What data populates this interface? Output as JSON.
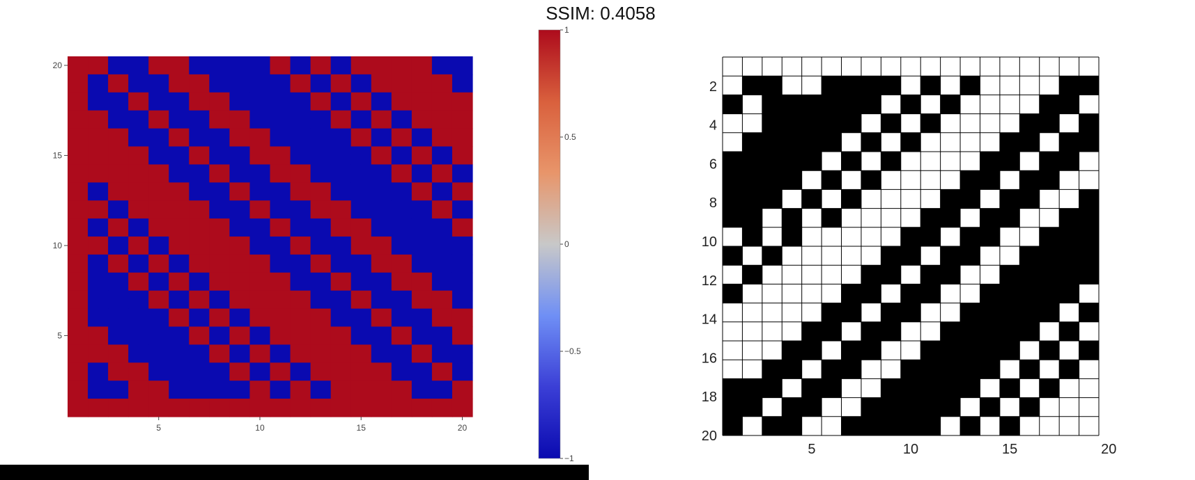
{
  "title": "SSIM: 0.4058",
  "colors": {
    "red": "#ad0b1c",
    "blue": "#0a0ab0",
    "black": "#000000",
    "white": "#ffffff",
    "colorscale": [
      "#0a0ab0",
      "#3b3fd6",
      "#6f8ff5",
      "#c8c8c8",
      "#e8956a",
      "#d9603d",
      "#ad0b1c"
    ],
    "bottom_bar": "#000000"
  },
  "chart_data": [
    {
      "type": "heatmap",
      "colorscale": "coolwarm",
      "xlim": [
        0.5,
        20.5
      ],
      "ylim": [
        0.5,
        20.5
      ],
      "x_ticks": [
        5,
        10,
        15,
        20
      ],
      "y_ticks": [
        5,
        10,
        15,
        20
      ],
      "zmin": -1,
      "zmax": 1,
      "colorbar": {
        "ticks": [
          1,
          0.5,
          0,
          -0.5,
          -1
        ],
        "tick_labels": [
          "1",
          "0.5",
          "0",
          "−0.5",
          "−1"
        ]
      },
      "y_direction": "up",
      "rows_top_to_bottom": [
        "11-----+++----+-+-+++++++--",
        "1-+--++---+-+-+-+++++--",
        "1--+--++---+-+-+-+++++",
        "11--+--++---+-+-+-++++",
        "111--+--++---+-+-+-+++",
        "1111--+--++---+-+-+-++",
        "11111--+--++---+-+-+-+",
        "1-11111--+--++---+-+-+-",
        "1+-11111--+--++---+-+-+",
        "1-+-11111--+--++---+-+-",
        "1+-+-11111--+--++---+-+",
        "1-+-+-11111--+--++---+-",
        "1--+-+-11111--+--++---+",
        "1---+-+-11111--+--++---",
        "1----+-+-11111--+--++--",
        "11----+-+-11111--+--++-",
        "111----+-+-11111--+--++",
        "1-11----+-+-11111--+--+",
        "1--1111-----+-+-11111--",
        "11111111111111111111"
      ],
      "matrix_top_to_bottom": [
        [
          1,
          1,
          -1,
          -1,
          1,
          1,
          -1,
          -1,
          -1,
          -1,
          1,
          -1,
          1,
          -1,
          1,
          1,
          1,
          1,
          -1,
          -1
        ],
        [
          1,
          -1,
          1,
          -1,
          -1,
          1,
          1,
          -1,
          -1,
          -1,
          -1,
          1,
          -1,
          1,
          -1,
          1,
          1,
          1,
          1,
          -1
        ],
        [
          1,
          -1,
          -1,
          1,
          -1,
          -1,
          1,
          1,
          -1,
          -1,
          -1,
          -1,
          1,
          -1,
          1,
          -1,
          1,
          1,
          1,
          1
        ],
        [
          1,
          1,
          -1,
          -1,
          1,
          -1,
          -1,
          1,
          1,
          -1,
          -1,
          -1,
          -1,
          1,
          -1,
          1,
          -1,
          1,
          1,
          1
        ],
        [
          1,
          1,
          1,
          -1,
          -1,
          1,
          -1,
          -1,
          1,
          1,
          -1,
          -1,
          -1,
          -1,
          1,
          -1,
          1,
          -1,
          1,
          1
        ],
        [
          1,
          1,
          1,
          1,
          -1,
          -1,
          1,
          -1,
          -1,
          1,
          1,
          -1,
          -1,
          -1,
          -1,
          1,
          -1,
          1,
          -1,
          1
        ],
        [
          1,
          1,
          1,
          1,
          1,
          -1,
          -1,
          1,
          -1,
          -1,
          1,
          1,
          -1,
          -1,
          -1,
          -1,
          1,
          -1,
          1,
          -1
        ],
        [
          1,
          -1,
          1,
          1,
          1,
          1,
          -1,
          -1,
          1,
          -1,
          -1,
          1,
          1,
          -1,
          -1,
          -1,
          -1,
          1,
          -1,
          1
        ],
        [
          1,
          1,
          -1,
          1,
          1,
          1,
          1,
          -1,
          -1,
          1,
          -1,
          -1,
          1,
          1,
          -1,
          -1,
          -1,
          -1,
          1,
          -1
        ],
        [
          1,
          -1,
          1,
          -1,
          1,
          1,
          1,
          1,
          -1,
          -1,
          1,
          -1,
          -1,
          1,
          1,
          -1,
          -1,
          -1,
          -1,
          1
        ],
        [
          1,
          1,
          -1,
          1,
          -1,
          1,
          1,
          1,
          1,
          -1,
          -1,
          1,
          -1,
          -1,
          1,
          1,
          -1,
          -1,
          -1,
          -1
        ],
        [
          1,
          -1,
          1,
          -1,
          1,
          -1,
          1,
          1,
          1,
          1,
          -1,
          -1,
          1,
          -1,
          -1,
          1,
          1,
          -1,
          -1,
          -1
        ],
        [
          1,
          -1,
          -1,
          1,
          -1,
          1,
          -1,
          1,
          1,
          1,
          1,
          -1,
          -1,
          1,
          -1,
          -1,
          1,
          1,
          -1,
          -1
        ],
        [
          1,
          -1,
          -1,
          -1,
          1,
          -1,
          1,
          -1,
          1,
          1,
          1,
          1,
          -1,
          -1,
          1,
          -1,
          -1,
          1,
          1,
          -1
        ],
        [
          1,
          -1,
          -1,
          -1,
          -1,
          1,
          -1,
          1,
          -1,
          1,
          1,
          1,
          1,
          -1,
          -1,
          1,
          -1,
          -1,
          1,
          1
        ],
        [
          1,
          1,
          -1,
          -1,
          -1,
          -1,
          1,
          -1,
          1,
          -1,
          1,
          1,
          1,
          1,
          -1,
          -1,
          1,
          -1,
          -1,
          1
        ],
        [
          1,
          1,
          1,
          -1,
          -1,
          -1,
          -1,
          1,
          -1,
          1,
          -1,
          1,
          1,
          1,
          1,
          -1,
          -1,
          1,
          -1,
          -1
        ],
        [
          1,
          -1,
          1,
          1,
          -1,
          -1,
          -1,
          -1,
          1,
          -1,
          1,
          -1,
          1,
          1,
          1,
          1,
          -1,
          -1,
          1,
          -1
        ],
        [
          1,
          -1,
          -1,
          1,
          1,
          -1,
          -1,
          -1,
          -1,
          1,
          -1,
          1,
          -1,
          1,
          1,
          1,
          1,
          -1,
          -1,
          1
        ],
        [
          1,
          1,
          1,
          1,
          1,
          1,
          1,
          1,
          1,
          1,
          1,
          1,
          1,
          1,
          1,
          1,
          1,
          1,
          1,
          1
        ]
      ]
    },
    {
      "type": "heatmap",
      "colorscale": "binary (black/white)",
      "xlim": [
        0.5,
        19.5
      ],
      "ylim": [
        0.5,
        20
      ],
      "x_ticks": [
        5,
        10,
        15,
        20
      ],
      "y_ticks": [
        2,
        4,
        6,
        8,
        10,
        12,
        14,
        16,
        18,
        20
      ],
      "y_direction": "down",
      "grid": true,
      "matrix_top_to_bottom": [
        [
          0,
          0,
          0,
          0,
          0,
          0,
          0,
          0,
          0,
          0,
          0,
          0,
          0,
          0,
          0,
          0,
          0,
          0,
          0
        ],
        [
          0,
          1,
          1,
          0,
          0,
          1,
          1,
          1,
          1,
          0,
          1,
          0,
          1,
          0,
          0,
          0,
          0,
          1,
          1
        ],
        [
          1,
          0,
          1,
          1,
          1,
          1,
          1,
          1,
          0,
          1,
          0,
          1,
          0,
          0,
          0,
          0,
          1,
          1,
          0
        ],
        [
          0,
          0,
          1,
          1,
          1,
          1,
          1,
          0,
          1,
          0,
          1,
          0,
          0,
          0,
          0,
          1,
          1,
          0,
          1
        ],
        [
          0,
          1,
          1,
          1,
          1,
          1,
          0,
          1,
          0,
          1,
          0,
          0,
          0,
          0,
          1,
          1,
          0,
          1,
          1
        ],
        [
          1,
          1,
          1,
          1,
          1,
          0,
          1,
          0,
          1,
          0,
          0,
          0,
          0,
          1,
          1,
          0,
          1,
          1,
          0
        ],
        [
          1,
          1,
          1,
          1,
          0,
          1,
          0,
          1,
          0,
          0,
          0,
          0,
          1,
          1,
          0,
          1,
          1,
          0,
          0
        ],
        [
          1,
          1,
          1,
          0,
          1,
          0,
          1,
          0,
          0,
          0,
          0,
          1,
          1,
          0,
          1,
          1,
          0,
          0,
          1
        ],
        [
          1,
          1,
          0,
          1,
          0,
          1,
          0,
          0,
          0,
          0,
          1,
          1,
          0,
          1,
          1,
          0,
          0,
          1,
          1
        ],
        [
          0,
          1,
          0,
          1,
          0,
          0,
          0,
          0,
          0,
          1,
          1,
          0,
          1,
          1,
          0,
          0,
          1,
          1,
          1
        ],
        [
          1,
          0,
          1,
          0,
          0,
          0,
          0,
          0,
          1,
          1,
          0,
          1,
          1,
          0,
          0,
          1,
          1,
          1,
          1
        ],
        [
          0,
          1,
          0,
          0,
          0,
          0,
          0,
          1,
          1,
          0,
          1,
          1,
          0,
          0,
          1,
          1,
          1,
          1,
          1
        ],
        [
          1,
          0,
          0,
          0,
          0,
          0,
          1,
          1,
          0,
          1,
          1,
          0,
          0,
          1,
          1,
          1,
          1,
          1,
          0
        ],
        [
          0,
          0,
          0,
          0,
          0,
          1,
          1,
          0,
          1,
          1,
          0,
          0,
          1,
          1,
          1,
          1,
          1,
          0,
          1
        ],
        [
          0,
          0,
          0,
          0,
          1,
          1,
          0,
          1,
          1,
          0,
          0,
          1,
          1,
          1,
          1,
          1,
          0,
          1,
          0
        ],
        [
          0,
          0,
          0,
          1,
          1,
          0,
          1,
          1,
          0,
          0,
          1,
          1,
          1,
          1,
          1,
          0,
          1,
          0,
          1
        ],
        [
          0,
          0,
          1,
          1,
          0,
          1,
          1,
          0,
          0,
          1,
          1,
          1,
          1,
          1,
          0,
          1,
          0,
          1,
          0
        ],
        [
          1,
          1,
          1,
          0,
          1,
          1,
          0,
          0,
          1,
          1,
          1,
          1,
          1,
          0,
          1,
          0,
          1,
          0,
          0
        ],
        [
          1,
          1,
          0,
          1,
          1,
          0,
          0,
          1,
          1,
          1,
          1,
          1,
          0,
          1,
          0,
          1,
          0,
          0,
          0
        ],
        [
          1,
          0,
          1,
          1,
          0,
          0,
          1,
          1,
          1,
          1,
          1,
          0,
          1,
          0,
          1,
          0,
          0,
          0,
          0
        ]
      ]
    }
  ]
}
